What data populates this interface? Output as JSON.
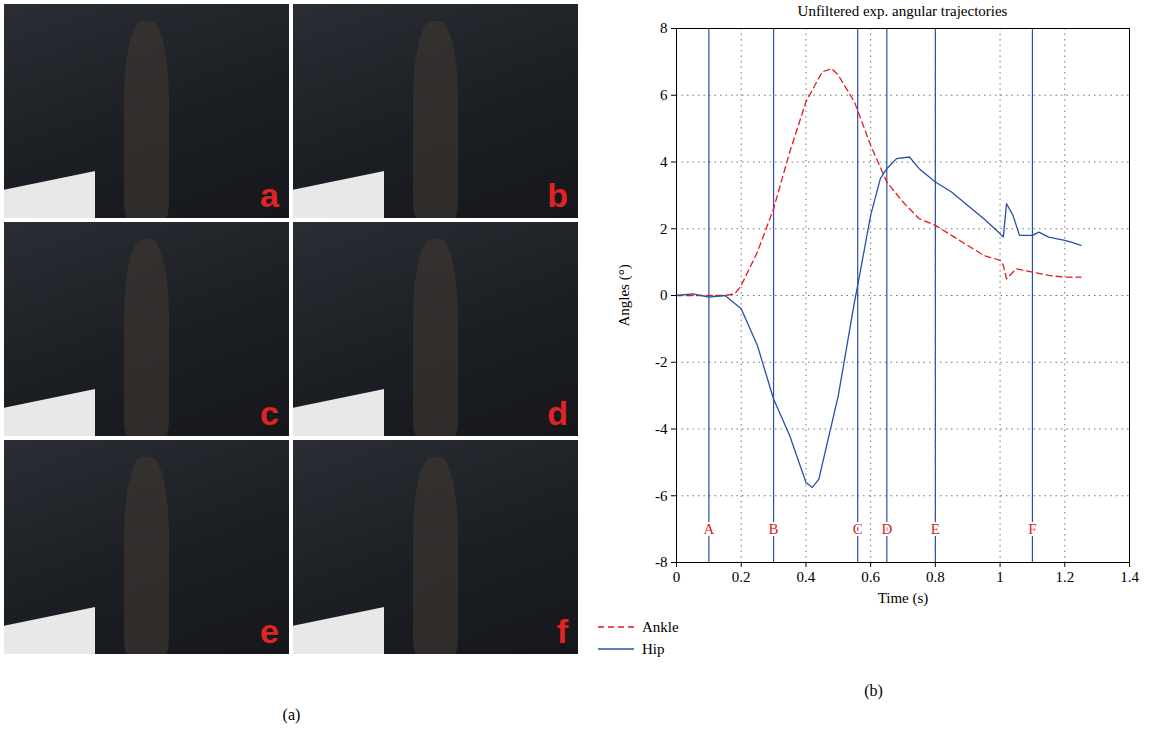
{
  "figure": {
    "panel_a": {
      "caption": "(a)",
      "frames": [
        "a",
        "b",
        "c",
        "d",
        "e",
        "f"
      ]
    },
    "panel_b": {
      "caption": "(b)"
    }
  },
  "chart_data": {
    "type": "line",
    "title": "Unfiltered exp. angular trajectories",
    "x_label": "Time (s)",
    "y_label": "Angles (°)",
    "xlim": [
      0,
      1.4
    ],
    "ylim": [
      -8,
      8
    ],
    "xticks": [
      0,
      0.2,
      0.4,
      0.6,
      0.8,
      1,
      1.2,
      1.4
    ],
    "yticks": [
      -8,
      -6,
      -4,
      -2,
      0,
      2,
      4,
      6,
      8
    ],
    "grid": true,
    "legend": "bottom",
    "vlines": [
      {
        "x": 0.1,
        "label": "A"
      },
      {
        "x": 0.3,
        "label": "B"
      },
      {
        "x": 0.56,
        "label": "C"
      },
      {
        "x": 0.65,
        "label": "D"
      },
      {
        "x": 0.8,
        "label": "E"
      },
      {
        "x": 1.1,
        "label": "F"
      }
    ],
    "series": [
      {
        "name": "Ankle",
        "color": "#e41a1c",
        "line_style": "dashed",
        "x": [
          0,
          0.05,
          0.1,
          0.15,
          0.18,
          0.2,
          0.25,
          0.3,
          0.35,
          0.4,
          0.45,
          0.48,
          0.5,
          0.55,
          0.6,
          0.65,
          0.7,
          0.75,
          0.8,
          0.85,
          0.9,
          0.95,
          1.0,
          1.01,
          1.02,
          1.05,
          1.1,
          1.15,
          1.2,
          1.25
        ],
        "values": [
          0,
          0,
          0,
          0,
          0.05,
          0.3,
          1.3,
          2.6,
          4.3,
          5.8,
          6.7,
          6.8,
          6.6,
          5.8,
          4.5,
          3.4,
          2.8,
          2.3,
          2.1,
          1.8,
          1.5,
          1.2,
          1.05,
          0.9,
          0.5,
          0.8,
          0.7,
          0.6,
          0.55,
          0.55
        ]
      },
      {
        "name": "Hip",
        "color": "#2a4fa8",
        "line_style": "solid",
        "x": [
          0,
          0.05,
          0.1,
          0.15,
          0.2,
          0.25,
          0.3,
          0.35,
          0.4,
          0.42,
          0.44,
          0.5,
          0.55,
          0.56,
          0.6,
          0.63,
          0.65,
          0.68,
          0.72,
          0.75,
          0.8,
          0.85,
          0.9,
          0.95,
          1.0,
          1.01,
          1.02,
          1.04,
          1.06,
          1.1,
          1.12,
          1.15,
          1.2,
          1.22,
          1.25
        ],
        "values": [
          0,
          0.05,
          -0.05,
          0,
          -0.4,
          -1.5,
          -3.1,
          -4.2,
          -5.6,
          -5.75,
          -5.5,
          -3.0,
          -0.2,
          0.3,
          2.4,
          3.5,
          3.8,
          4.1,
          4.15,
          3.8,
          3.4,
          3.1,
          2.7,
          2.3,
          1.85,
          1.75,
          2.75,
          2.4,
          1.8,
          1.8,
          1.9,
          1.75,
          1.65,
          1.6,
          1.5
        ]
      }
    ]
  }
}
